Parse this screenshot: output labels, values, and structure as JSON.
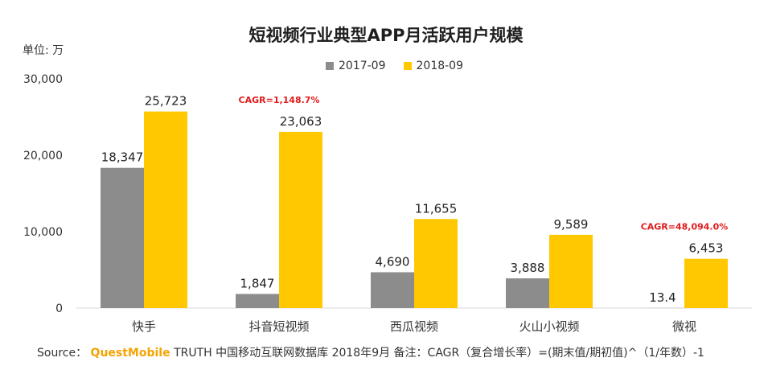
{
  "chart_data": {
    "type": "bar",
    "title": "短视频行业典型APP月活跃用户规模",
    "ylabel": "单位: 万",
    "ylim": [
      0,
      30000
    ],
    "yticks": [
      "0",
      "10,000",
      "20,000",
      "30,000"
    ],
    "categories": [
      "快手",
      "抖音短视频",
      "西瓜视频",
      "火山小视频",
      "微视"
    ],
    "series": [
      {
        "name": "2017-09",
        "color": "#8c8c8c",
        "values": [
          18347,
          1847,
          4690,
          3888,
          13.4
        ],
        "labels": [
          "18,347",
          "1,847",
          "4,690",
          "3,888",
          "13.4"
        ]
      },
      {
        "name": "2018-09",
        "color": "#ffc800",
        "values": [
          25723,
          23063,
          11655,
          9589,
          6453
        ],
        "labels": [
          "25,723",
          "23,063",
          "11,655",
          "9,589",
          "6,453"
        ]
      }
    ],
    "annotations": [
      {
        "category": "抖音短视频",
        "text": "CAGR=1,148.7%"
      },
      {
        "category": "微视",
        "text": "CAGR=48,094.0%"
      }
    ],
    "grid": false,
    "legend_position": "top"
  },
  "source": {
    "prefix": "Source：",
    "brand": "QuestMobile",
    "rest": "TRUTH 中国移动互联网数据库 2018年9月   备注：CAGR（复合增长率）=(期末值/期初值)^（1/年数）-1"
  }
}
